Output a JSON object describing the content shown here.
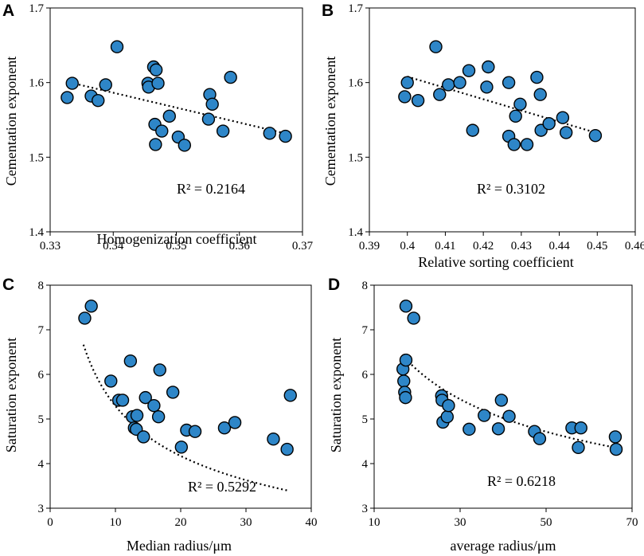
{
  "chart_data": [
    {
      "id": "A",
      "panel_label": "A",
      "type": "scatter",
      "xlabel": "Homogenization coefficient",
      "ylabel": "Cementation exponent",
      "xlim": [
        0.33,
        0.37
      ],
      "ylim": [
        1.4,
        1.7
      ],
      "xticks": [
        0.33,
        0.34,
        0.35,
        0.36,
        0.37
      ],
      "yticks": [
        1.4,
        1.5,
        1.6,
        1.7
      ],
      "xtick_labels": [
        "0.33",
        "0.34",
        "0.35",
        "0.36",
        "0.37"
      ],
      "ytick_labels": [
        "1.4",
        "1.5",
        "1.6",
        "1.7"
      ],
      "r2_text": "R² = 0.2164",
      "trendline": {
        "type": "linear",
        "x": [
          0.3332,
          0.3672
        ],
        "y": [
          1.6,
          1.532
        ]
      },
      "points": [
        {
          "x": 0.3327,
          "y": 1.58
        },
        {
          "x": 0.3335,
          "y": 1.599
        },
        {
          "x": 0.3365,
          "y": 1.582
        },
        {
          "x": 0.3376,
          "y": 1.576
        },
        {
          "x": 0.3388,
          "y": 1.597
        },
        {
          "x": 0.3406,
          "y": 1.648
        },
        {
          "x": 0.3455,
          "y": 1.599
        },
        {
          "x": 0.3456,
          "y": 1.594
        },
        {
          "x": 0.3464,
          "y": 1.621
        },
        {
          "x": 0.3468,
          "y": 1.617
        },
        {
          "x": 0.3471,
          "y": 1.599
        },
        {
          "x": 0.3466,
          "y": 1.544
        },
        {
          "x": 0.3467,
          "y": 1.517
        },
        {
          "x": 0.3477,
          "y": 1.535
        },
        {
          "x": 0.3489,
          "y": 1.555
        },
        {
          "x": 0.3503,
          "y": 1.527
        },
        {
          "x": 0.3513,
          "y": 1.516
        },
        {
          "x": 0.3551,
          "y": 1.551
        },
        {
          "x": 0.3553,
          "y": 1.584
        },
        {
          "x": 0.3557,
          "y": 1.571
        },
        {
          "x": 0.3574,
          "y": 1.535
        },
        {
          "x": 0.3586,
          "y": 1.607
        },
        {
          "x": 0.3648,
          "y": 1.532
        },
        {
          "x": 0.3673,
          "y": 1.528
        }
      ]
    },
    {
      "id": "B",
      "panel_label": "B",
      "type": "scatter",
      "xlabel": "Relative sorting coefficient",
      "ylabel": "Cementation exponent",
      "xlim": [
        0.39,
        0.46
      ],
      "ylim": [
        1.4,
        1.7
      ],
      "xticks": [
        0.39,
        0.4,
        0.41,
        0.42,
        0.43,
        0.44,
        0.45,
        0.46
      ],
      "yticks": [
        1.4,
        1.5,
        1.6,
        1.7
      ],
      "xtick_labels": [
        "0.39",
        "0.4",
        "0.41",
        "0.42",
        "0.43",
        "0.44",
        "0.45",
        "0.46"
      ],
      "ytick_labels": [
        "1.4",
        "1.5",
        "1.6",
        "1.7"
      ],
      "r2_text": "R² = 0.3102",
      "trendline": {
        "type": "linear",
        "x": [
          0.4,
          0.4495
        ],
        "y": [
          1.608,
          1.533
        ]
      },
      "points": [
        {
          "x": 0.3993,
          "y": 1.581
        },
        {
          "x": 0.4,
          "y": 1.6
        },
        {
          "x": 0.4028,
          "y": 1.576
        },
        {
          "x": 0.4075,
          "y": 1.648
        },
        {
          "x": 0.4085,
          "y": 1.584
        },
        {
          "x": 0.4108,
          "y": 1.597
        },
        {
          "x": 0.4138,
          "y": 1.6
        },
        {
          "x": 0.4162,
          "y": 1.616
        },
        {
          "x": 0.4172,
          "y": 1.536
        },
        {
          "x": 0.4213,
          "y": 1.621
        },
        {
          "x": 0.4209,
          "y": 1.594
        },
        {
          "x": 0.4267,
          "y": 1.6
        },
        {
          "x": 0.4267,
          "y": 1.528
        },
        {
          "x": 0.4281,
          "y": 1.517
        },
        {
          "x": 0.4285,
          "y": 1.555
        },
        {
          "x": 0.4297,
          "y": 1.571
        },
        {
          "x": 0.4315,
          "y": 1.517
        },
        {
          "x": 0.4341,
          "y": 1.607
        },
        {
          "x": 0.435,
          "y": 1.584
        },
        {
          "x": 0.4352,
          "y": 1.536
        },
        {
          "x": 0.4373,
          "y": 1.545
        },
        {
          "x": 0.4409,
          "y": 1.553
        },
        {
          "x": 0.4418,
          "y": 1.533
        },
        {
          "x": 0.4495,
          "y": 1.529
        }
      ]
    },
    {
      "id": "C",
      "panel_label": "C",
      "type": "scatter",
      "xlabel": "Median radius/μm",
      "ylabel": "Saturation exponent",
      "xlim": [
        0,
        40
      ],
      "ylim": [
        3,
        8
      ],
      "xticks": [
        0,
        10,
        20,
        30,
        40
      ],
      "yticks": [
        3,
        4,
        5,
        6,
        7,
        8
      ],
      "xtick_labels": [
        "0",
        "10",
        "20",
        "30",
        "40"
      ],
      "ytick_labels": [
        "3",
        "4",
        "5",
        "6",
        "7",
        "8"
      ],
      "r2_text": "R² = 0.5292",
      "trendline": {
        "type": "power",
        "a": 11.66,
        "b": -0.3432,
        "x_range": [
          5.1,
          36.6
        ]
      },
      "points": [
        {
          "x": 5.3,
          "y": 7.26
        },
        {
          "x": 6.3,
          "y": 7.53
        },
        {
          "x": 9.3,
          "y": 5.85
        },
        {
          "x": 10.5,
          "y": 5.42
        },
        {
          "x": 11.1,
          "y": 5.42
        },
        {
          "x": 12.3,
          "y": 6.3
        },
        {
          "x": 12.6,
          "y": 5.05
        },
        {
          "x": 12.9,
          "y": 4.8
        },
        {
          "x": 13.2,
          "y": 4.77
        },
        {
          "x": 13.3,
          "y": 5.08
        },
        {
          "x": 14.3,
          "y": 4.6
        },
        {
          "x": 14.6,
          "y": 5.48
        },
        {
          "x": 15.9,
          "y": 5.3
        },
        {
          "x": 16.6,
          "y": 5.05
        },
        {
          "x": 16.8,
          "y": 6.1
        },
        {
          "x": 18.8,
          "y": 5.6
        },
        {
          "x": 20.1,
          "y": 4.37
        },
        {
          "x": 20.9,
          "y": 4.75
        },
        {
          "x": 22.2,
          "y": 4.72
        },
        {
          "x": 26.7,
          "y": 4.8
        },
        {
          "x": 28.3,
          "y": 4.92
        },
        {
          "x": 34.2,
          "y": 4.55
        },
        {
          "x": 36.3,
          "y": 4.32
        },
        {
          "x": 36.8,
          "y": 5.53
        }
      ]
    },
    {
      "id": "D",
      "panel_label": "D",
      "type": "scatter",
      "xlabel": "average radius/μm",
      "ylabel": "Saturation exponent",
      "xlim": [
        10,
        70
      ],
      "ylim": [
        3,
        8
      ],
      "xticks": [
        10,
        30,
        50,
        70
      ],
      "yticks": [
        3,
        4,
        5,
        6,
        7,
        8
      ],
      "xtick_labels": [
        "10",
        "30",
        "50",
        "70"
      ],
      "ytick_labels": [
        "3",
        "4",
        "5",
        "6",
        "7",
        "8"
      ],
      "r2_text": "R² = 0.6218",
      "trendline": {
        "type": "power",
        "a": 14.16,
        "b": -0.2811,
        "x_range": [
          16.6,
          66.3
        ]
      },
      "points": [
        {
          "x": 16.7,
          "y": 6.12
        },
        {
          "x": 16.9,
          "y": 5.85
        },
        {
          "x": 17.1,
          "y": 5.6
        },
        {
          "x": 17.3,
          "y": 5.48
        },
        {
          "x": 17.4,
          "y": 6.32
        },
        {
          "x": 17.4,
          "y": 7.53
        },
        {
          "x": 19.2,
          "y": 7.26
        },
        {
          "x": 25.7,
          "y": 5.52
        },
        {
          "x": 25.8,
          "y": 5.42
        },
        {
          "x": 26.0,
          "y": 4.93
        },
        {
          "x": 27.0,
          "y": 5.05
        },
        {
          "x": 27.3,
          "y": 5.3
        },
        {
          "x": 32.1,
          "y": 4.77
        },
        {
          "x": 35.6,
          "y": 5.08
        },
        {
          "x": 38.9,
          "y": 4.78
        },
        {
          "x": 39.6,
          "y": 5.42
        },
        {
          "x": 41.4,
          "y": 5.06
        },
        {
          "x": 47.3,
          "y": 4.72
        },
        {
          "x": 48.5,
          "y": 4.56
        },
        {
          "x": 56.0,
          "y": 4.8
        },
        {
          "x": 57.5,
          "y": 4.36
        },
        {
          "x": 58.1,
          "y": 4.8
        },
        {
          "x": 66.1,
          "y": 4.6
        },
        {
          "x": 66.3,
          "y": 4.32
        }
      ]
    }
  ]
}
